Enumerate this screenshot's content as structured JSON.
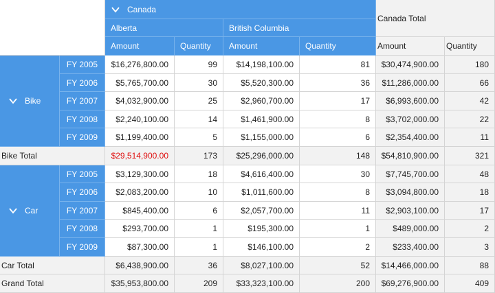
{
  "header": {
    "country": "Canada",
    "country_total": "Canada Total",
    "regions": [
      "Alberta",
      "British Columbia"
    ],
    "amount_label": "Amount",
    "quantity_label": "Quantity"
  },
  "rows": {
    "groups": [
      {
        "name": "Bike",
        "years": [
          {
            "fy": "FY 2005",
            "ab_amt": "$16,276,800.00",
            "ab_qty": "99",
            "bc_amt": "$14,198,100.00",
            "bc_qty": "81",
            "tot_amt": "$30,474,900.00",
            "tot_qty": "180"
          },
          {
            "fy": "FY 2006",
            "ab_amt": "$5,765,700.00",
            "ab_qty": "30",
            "bc_amt": "$5,520,300.00",
            "bc_qty": "36",
            "tot_amt": "$11,286,000.00",
            "tot_qty": "66"
          },
          {
            "fy": "FY 2007",
            "ab_amt": "$4,032,900.00",
            "ab_qty": "25",
            "bc_amt": "$2,960,700.00",
            "bc_qty": "17",
            "tot_amt": "$6,993,600.00",
            "tot_qty": "42"
          },
          {
            "fy": "FY 2008",
            "ab_amt": "$2,240,100.00",
            "ab_qty": "14",
            "bc_amt": "$1,461,900.00",
            "bc_qty": "8",
            "tot_amt": "$3,702,000.00",
            "tot_qty": "22"
          },
          {
            "fy": "FY 2009",
            "ab_amt": "$1,199,400.00",
            "ab_qty": "5",
            "bc_amt": "$1,155,000.00",
            "bc_qty": "6",
            "tot_amt": "$2,354,400.00",
            "tot_qty": "11"
          }
        ],
        "total": {
          "label": "Bike Total",
          "ab_amt": "$29,514,900.00",
          "ab_qty": "173",
          "bc_amt": "$25,296,000.00",
          "bc_qty": "148",
          "tot_amt": "$54,810,900.00",
          "tot_qty": "321"
        }
      },
      {
        "name": "Car",
        "years": [
          {
            "fy": "FY 2005",
            "ab_amt": "$3,129,300.00",
            "ab_qty": "18",
            "bc_amt": "$4,616,400.00",
            "bc_qty": "30",
            "tot_amt": "$7,745,700.00",
            "tot_qty": "48"
          },
          {
            "fy": "FY 2006",
            "ab_amt": "$2,083,200.00",
            "ab_qty": "10",
            "bc_amt": "$1,011,600.00",
            "bc_qty": "8",
            "tot_amt": "$3,094,800.00",
            "tot_qty": "18"
          },
          {
            "fy": "FY 2007",
            "ab_amt": "$845,400.00",
            "ab_qty": "6",
            "bc_amt": "$2,057,700.00",
            "bc_qty": "11",
            "tot_amt": "$2,903,100.00",
            "tot_qty": "17"
          },
          {
            "fy": "FY 2008",
            "ab_amt": "$293,700.00",
            "ab_qty": "1",
            "bc_amt": "$195,300.00",
            "bc_qty": "1",
            "tot_amt": "$489,000.00",
            "tot_qty": "2"
          },
          {
            "fy": "FY 2009",
            "ab_amt": "$87,300.00",
            "ab_qty": "1",
            "bc_amt": "$146,100.00",
            "bc_qty": "2",
            "tot_amt": "$233,400.00",
            "tot_qty": "3"
          }
        ],
        "total": {
          "label": "Car Total",
          "ab_amt": "$6,438,900.00",
          "ab_qty": "36",
          "bc_amt": "$8,027,100.00",
          "bc_qty": "52",
          "tot_amt": "$14,466,000.00",
          "tot_qty": "88"
        }
      }
    ],
    "grand_total": {
      "label": "Grand Total",
      "ab_amt": "$35,953,800.00",
      "ab_qty": "209",
      "bc_amt": "$33,323,100.00",
      "bc_qty": "200",
      "tot_amt": "$69,276,900.00",
      "tot_qty": "409"
    }
  },
  "icons": {
    "expand": "chevron-down-icon"
  },
  "colors": {
    "header_blue": "#4a97e4",
    "negative_red": "#e01010",
    "total_gray": "#f2f2f2"
  }
}
